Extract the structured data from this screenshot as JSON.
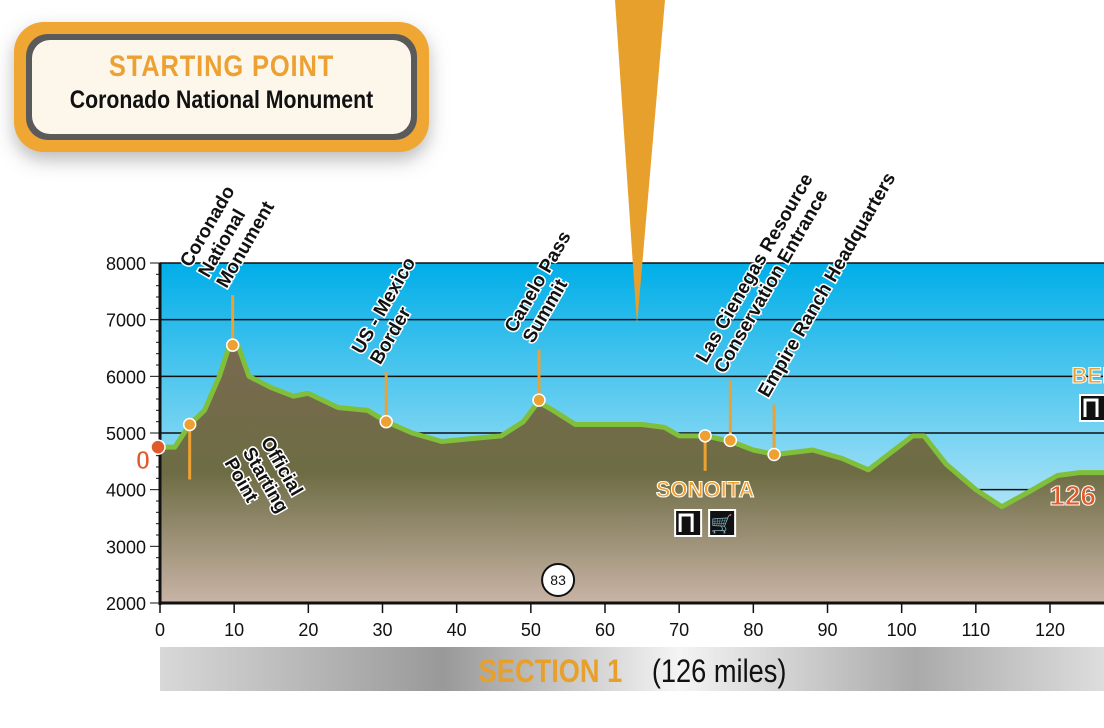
{
  "starting_point": {
    "title": "STARTING POINT",
    "subtitle": "Coronado National Monument"
  },
  "banner": {
    "section": "SECTION 1",
    "miles": "(126 miles)"
  },
  "colors": {
    "sky_top": "#00aee8",
    "sky_bottom": "#e6f4fb",
    "terrain": "#6f6a45",
    "ridge": "#7fbf3a",
    "marker": "#eda133",
    "mile_label": "#e05a2a"
  },
  "chart_data": {
    "type": "area",
    "xlim": [
      0,
      126
    ],
    "ylim": [
      2000,
      8000
    ],
    "x_ticks": [
      0,
      10,
      20,
      30,
      40,
      50,
      60,
      70,
      80,
      90,
      100,
      110,
      120
    ],
    "y_ticks": [
      2000,
      3000,
      4000,
      5000,
      6000,
      7000,
      8000
    ],
    "grid": "horizontal",
    "x": [
      0,
      2,
      4,
      6,
      8,
      9.5,
      10.5,
      12,
      15,
      18,
      20,
      24,
      28,
      30.5,
      34,
      38,
      42,
      46,
      49,
      51,
      53,
      56,
      60,
      65,
      68,
      70,
      73.5,
      77,
      80,
      83,
      88,
      92,
      95.5,
      99,
      101.5,
      103,
      106,
      110,
      113.5,
      117,
      121,
      124,
      126
    ],
    "y": [
      4750,
      4750,
      5150,
      5400,
      6000,
      6600,
      6550,
      6000,
      5800,
      5650,
      5700,
      5450,
      5400,
      5200,
      5000,
      4850,
      4900,
      4950,
      5200,
      5550,
      5400,
      5150,
      5150,
      5150,
      5100,
      4950,
      4950,
      4850,
      4700,
      4620,
      4700,
      4550,
      4350,
      4700,
      4950,
      4950,
      4450,
      4000,
      3700,
      3950,
      4250,
      4300,
      4300
    ],
    "start_label": "0",
    "end_label": "126",
    "towns": [
      {
        "name": "SONOITA",
        "mile": 73.5,
        "icons": [
          "lodging-icon",
          "grocery-icon"
        ]
      },
      {
        "name": "BEN",
        "mile": 126,
        "icons": [
          "lodging-icon"
        ]
      }
    ],
    "route_shield": {
      "label": "83",
      "mile": 53
    },
    "waypoints": [
      {
        "label": [
          "Official",
          "Starting",
          "Point"
        ],
        "mile": 4,
        "elev": 5150,
        "below": true
      },
      {
        "label": [
          "Coronado",
          "National",
          "Monument"
        ],
        "mile": 9.8,
        "elev": 6550
      },
      {
        "label": [
          "US - Mexico",
          "Border"
        ],
        "mile": 30.5,
        "elev": 5200
      },
      {
        "label": [
          "Canelo Pass",
          "Summit"
        ],
        "mile": 51.1,
        "elev": 5580
      },
      {
        "label": [],
        "mile": 73.5,
        "elev": 4950,
        "below": true
      },
      {
        "label": [
          "Las Cienegas Resource",
          "Conservation Entrance"
        ],
        "mile": 76.9,
        "elev": 4870
      },
      {
        "label": [
          "Empire Ranch Headquarters"
        ],
        "mile": 82.8,
        "elev": 4620
      }
    ]
  }
}
